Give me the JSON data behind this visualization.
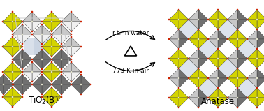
{
  "bg_color": "#ffffff",
  "title_left": "TiO$_2$(B)",
  "title_right": "Anatase",
  "arrow_top_text": "773 K in air",
  "arrow_bottom_text": "r.t. in water",
  "arrow_middle_text": "Δ",
  "fig_width": 3.78,
  "fig_height": 1.59,
  "yellow": "#d4d400",
  "dark_gray": "#707070",
  "light_gray": "#c8c8c8",
  "blue_tint": "#c0ccdd",
  "white_face": "#f0f0f0",
  "red_dot": "#cc2200",
  "unit_cell_color": "#cccccc"
}
